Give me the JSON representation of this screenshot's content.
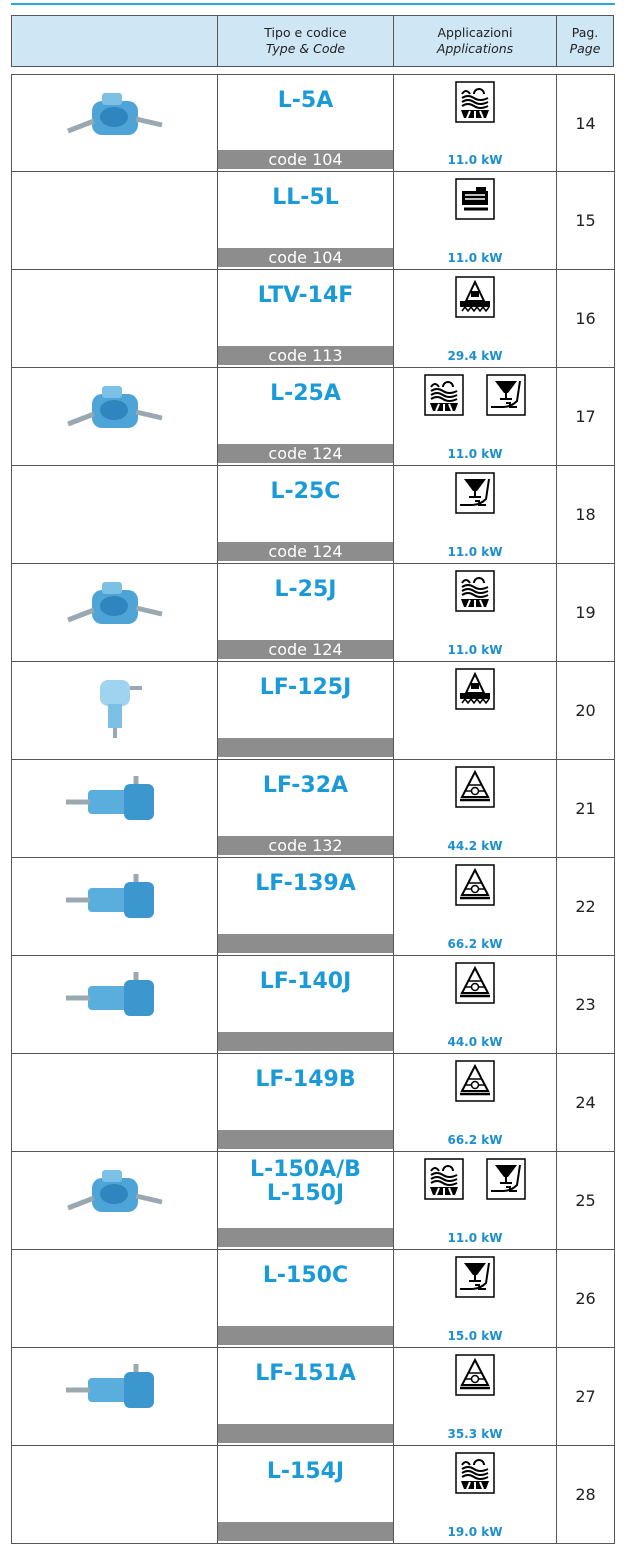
{
  "header": {
    "columns": [
      {
        "title": "Tipo e codice",
        "subtitle": "Type & Code"
      },
      {
        "title": "Applicazioni",
        "subtitle": "Applications"
      },
      {
        "title": "Pag.",
        "subtitle": "Page"
      }
    ]
  },
  "rows": [
    {
      "name": "L-5A",
      "code": "code 104",
      "power": "11.0 kW",
      "page": 14
    },
    {
      "name": "LL-5L",
      "code": "code 104",
      "power": "11.0 kW",
      "page": 15
    },
    {
      "name": "LTV-14F",
      "code": "code 113",
      "power": "29.4 kW",
      "page": 16
    },
    {
      "name": "L-25A",
      "code": "code 124",
      "power": "11.0 kW",
      "page": 17
    },
    {
      "name": "L-25C",
      "code": "code 124",
      "power": "11.0 kW",
      "page": 18
    },
    {
      "name": "L-25J",
      "code": "code 124",
      "power": "11.0 kW",
      "page": 19
    },
    {
      "name": "LF-125J",
      "page": 20
    },
    {
      "name": "LF-32A",
      "code": "code 132",
      "power": "44.2 kW",
      "page": 21
    },
    {
      "name": "LF-139A",
      "power": "66.2 kW",
      "page": 22
    },
    {
      "name": "LF-140J",
      "power": "44.0 kW",
      "page": 23
    },
    {
      "name": "LF-149B",
      "power": "66.2 kW",
      "page": 24
    },
    {
      "name": "L-150A/B\nL-150J",
      "power": "11.0 kW",
      "page": 25
    },
    {
      "name": "L-150C",
      "power": "15.0 kW",
      "page": 26
    },
    {
      "name": "LF-151A",
      "power": "35.3 kW",
      "page": 27
    },
    {
      "name": "L-154J",
      "power": "19.0 kW",
      "page": 28
    }
  ]
}
